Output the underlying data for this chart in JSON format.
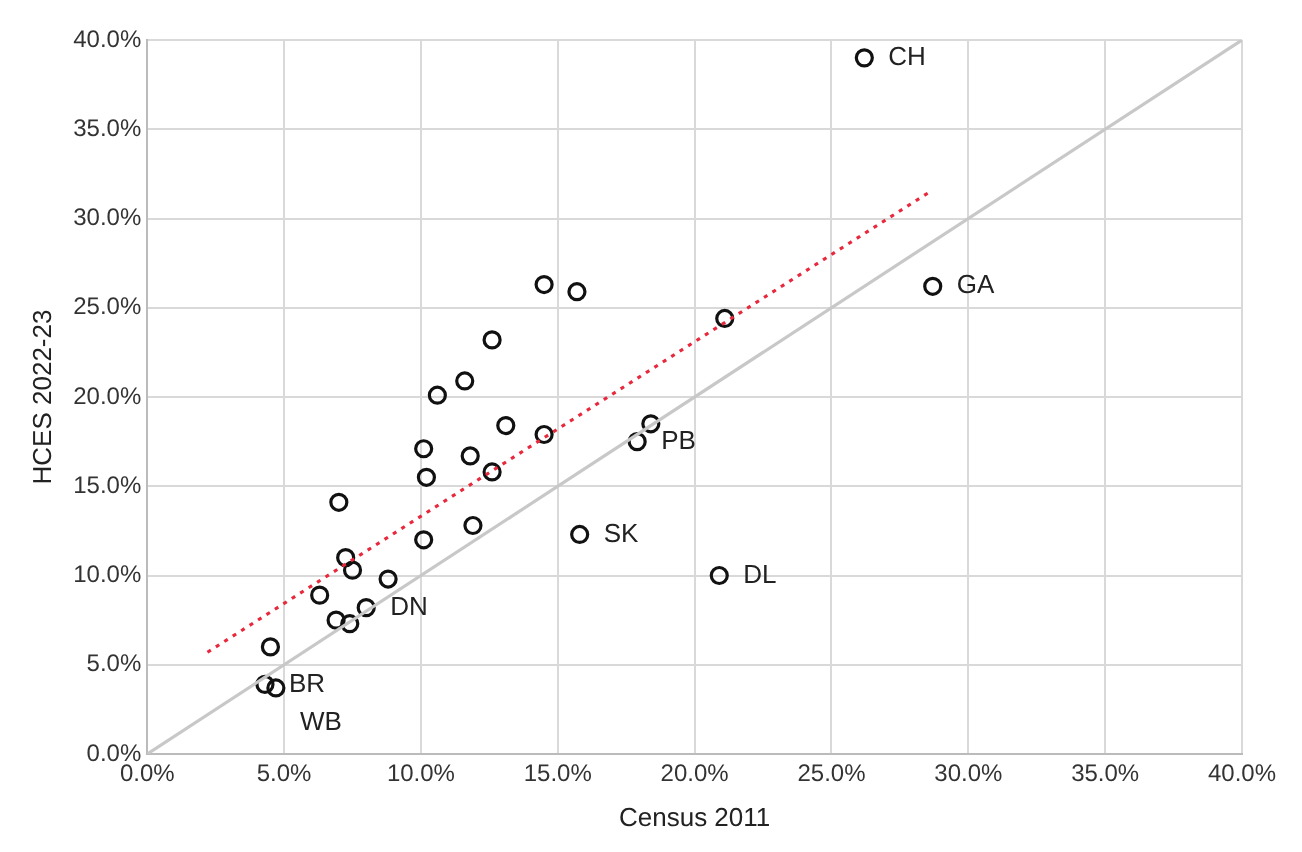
{
  "chart_data": {
    "type": "scatter",
    "xlabel": "Census 2011",
    "ylabel": "HCES 2022-23",
    "xlim": [
      0,
      40
    ],
    "ylim": [
      0,
      40
    ],
    "xticks": [
      {
        "value": 0,
        "label": "0.0%"
      },
      {
        "value": 5,
        "label": "5.0%"
      },
      {
        "value": 10,
        "label": "10.0%"
      },
      {
        "value": 15,
        "label": "15.0%"
      },
      {
        "value": 20,
        "label": "20.0%"
      },
      {
        "value": 25,
        "label": "25.0%"
      },
      {
        "value": 30,
        "label": "30.0%"
      },
      {
        "value": 35,
        "label": "35.0%"
      },
      {
        "value": 40,
        "label": "40.0%"
      }
    ],
    "yticks": [
      {
        "value": 0,
        "label": "0.0%"
      },
      {
        "value": 5,
        "label": "5.0%"
      },
      {
        "value": 10,
        "label": "10.0%"
      },
      {
        "value": 15,
        "label": "15.0%"
      },
      {
        "value": 20,
        "label": "20.0%"
      },
      {
        "value": 25,
        "label": "25.0%"
      },
      {
        "value": 30,
        "label": "30.0%"
      },
      {
        "value": 35,
        "label": "35.0%"
      },
      {
        "value": 40,
        "label": "40.0%"
      }
    ],
    "grid": true,
    "legend": false,
    "series": [
      {
        "type": "line",
        "color": "#c8c8c8",
        "x": [
          0,
          40
        ],
        "values": [
          0,
          40
        ],
        "marker": "none",
        "line_style": "solid"
      },
      {
        "type": "line",
        "color": "#e8283c",
        "x": [
          2.2,
          28.6
        ],
        "values": [
          5.7,
          31.5
        ],
        "marker": "none",
        "line_style": "dotted"
      },
      {
        "color": "#111111",
        "marker": "circle",
        "x": [
          26.2,
          28.7,
          21.1,
          14.5,
          15.7,
          18.4,
          17.9,
          14.5,
          15.8,
          20.9,
          12.6,
          11.6,
          10.6,
          13.1,
          10.1,
          11.8,
          10.2,
          12.6,
          7.0,
          11.9,
          10.1,
          7.25,
          7.5,
          8.8,
          6.3,
          8.0,
          6.9,
          7.4,
          4.5,
          4.3,
          4.7
        ],
        "values": [
          39.0,
          26.2,
          24.4,
          26.3,
          25.9,
          18.5,
          17.5,
          17.9,
          12.3,
          10.0,
          23.2,
          20.9,
          20.1,
          18.4,
          17.1,
          16.7,
          15.5,
          15.8,
          14.1,
          12.8,
          12.0,
          11.0,
          10.3,
          9.8,
          8.9,
          8.2,
          7.5,
          7.3,
          6.0,
          3.9,
          3.7
        ]
      }
    ],
    "annotations": [
      {
        "text": "CH",
        "x": 26.2,
        "y": 39.0
      },
      {
        "text": "GA",
        "x": 28.7,
        "y": 26.2
      },
      {
        "text": "PB",
        "x": 17.9,
        "y": 17.5
      },
      {
        "text": "SK",
        "x": 15.8,
        "y": 12.3
      },
      {
        "text": "DL",
        "x": 20.9,
        "y": 10.0
      },
      {
        "text": "DN",
        "x": 8.0,
        "y": 8.2
      },
      {
        "text": "BR",
        "x": 4.3,
        "y": 3.9
      },
      {
        "text": "WB",
        "x": 4.7,
        "y": 3.75
      }
    ]
  }
}
